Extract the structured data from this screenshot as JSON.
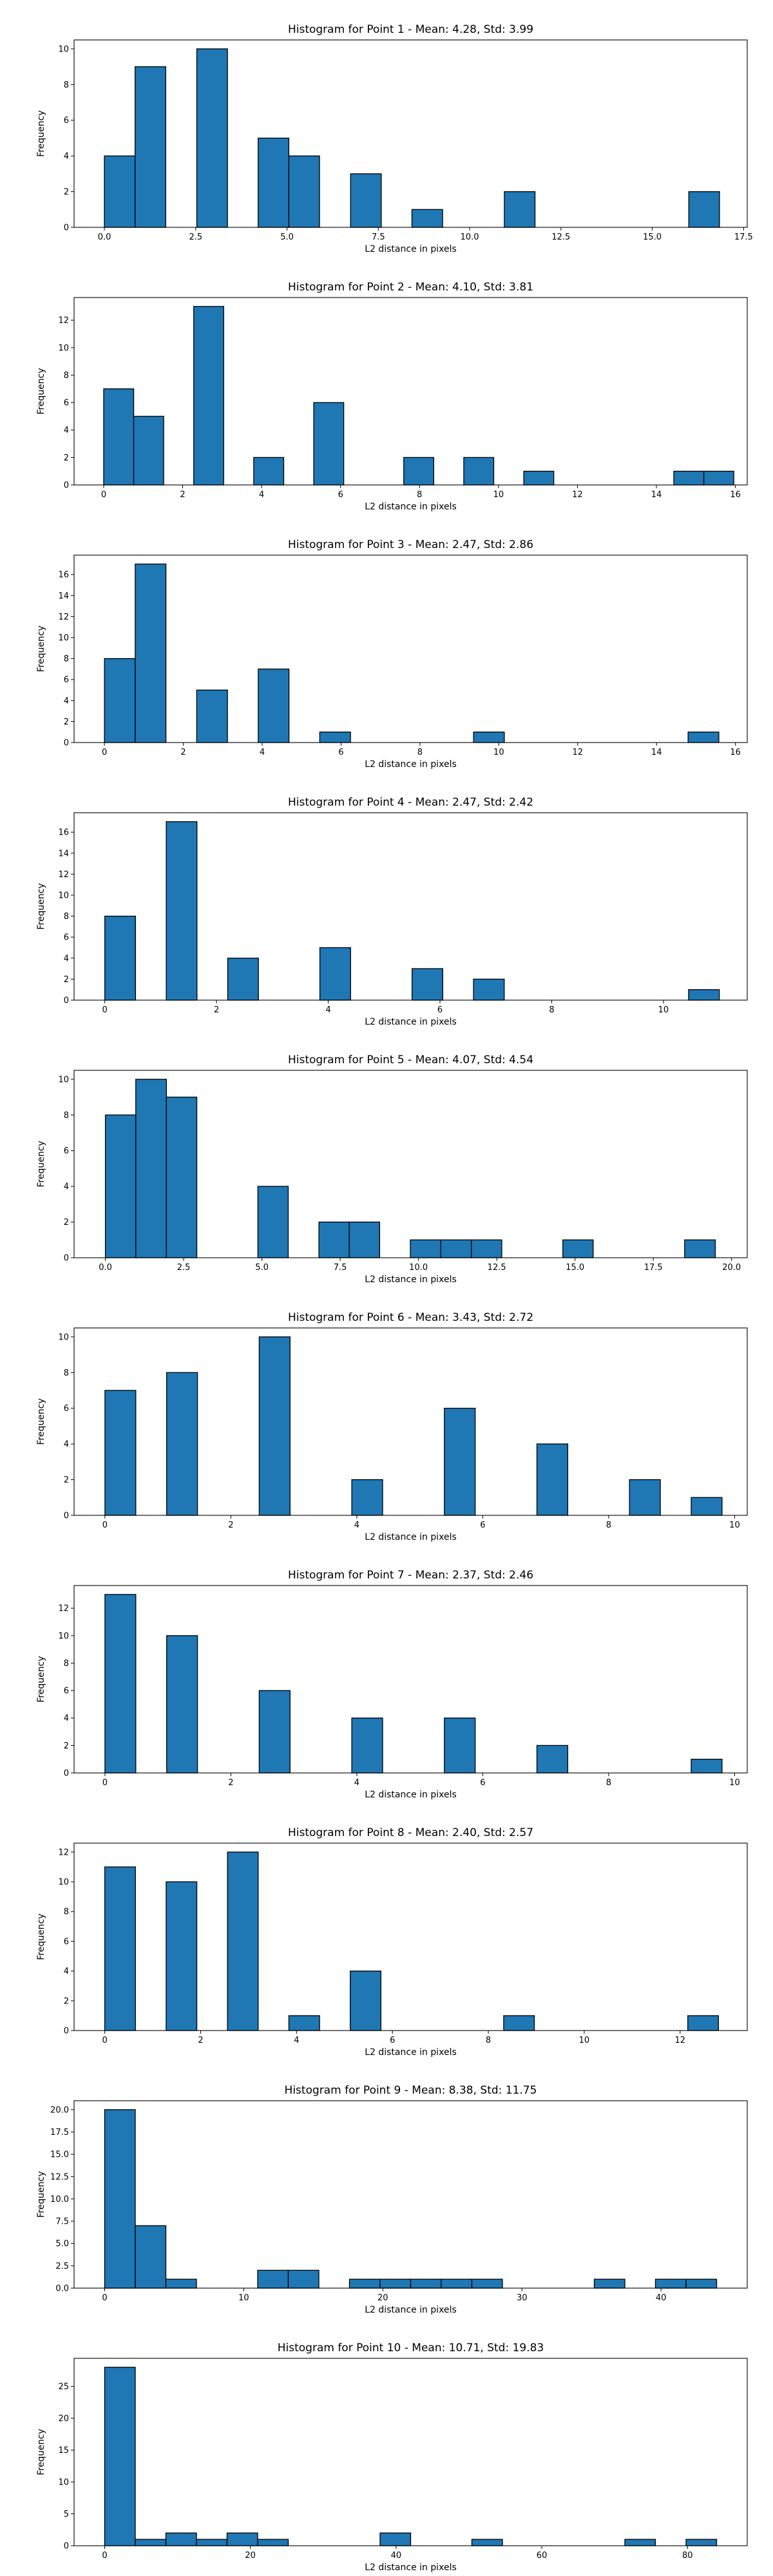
{
  "chart_data": [
    {
      "type": "bar",
      "title": "Histogram for Point 1 - Mean: 4.28, Std: 3.99",
      "xlabel": "L2 distance in pixels",
      "ylabel": "Frequency",
      "xlim": [
        -0.83,
        17.6
      ],
      "ylim": [
        0,
        10.5
      ],
      "xticks": [
        0.0,
        2.5,
        5.0,
        7.5,
        10.0,
        12.5,
        15.0,
        17.5
      ],
      "xtick_labels": [
        "0.0",
        "2.5",
        "5.0",
        "7.5",
        "10.0",
        "12.5",
        "15.0",
        "17.5"
      ],
      "yticks": [
        0,
        2,
        4,
        6,
        8,
        10
      ],
      "bins": [
        {
          "x0": 0.0,
          "x1": 0.84,
          "count": 4
        },
        {
          "x0": 0.84,
          "x1": 1.68,
          "count": 9
        },
        {
          "x0": 2.53,
          "x1": 3.37,
          "count": 10
        },
        {
          "x0": 4.21,
          "x1": 5.05,
          "count": 5
        },
        {
          "x0": 5.05,
          "x1": 5.89,
          "count": 4
        },
        {
          "x0": 6.74,
          "x1": 7.58,
          "count": 3
        },
        {
          "x0": 8.42,
          "x1": 9.26,
          "count": 1
        },
        {
          "x0": 10.95,
          "x1": 11.79,
          "count": 2
        },
        {
          "x0": 16.0,
          "x1": 16.84,
          "count": 2
        }
      ],
      "bar_color": "#1f77b4",
      "edge_color": "#000000"
    },
    {
      "type": "bar",
      "title": "Histogram for Point 2 - Mean: 4.10, Std: 3.81",
      "xlabel": "L2 distance in pixels",
      "ylabel": "Frequency",
      "xlim": [
        -0.75,
        16.3
      ],
      "ylim": [
        0,
        13.65
      ],
      "xticks": [
        0,
        2,
        4,
        6,
        8,
        10,
        12,
        14,
        16
      ],
      "xtick_labels": [
        "0",
        "2",
        "4",
        "6",
        "8",
        "10",
        "12",
        "14",
        "16"
      ],
      "yticks": [
        0,
        2,
        4,
        6,
        8,
        10,
        12
      ],
      "bins": [
        {
          "x0": 0.0,
          "x1": 0.76,
          "count": 7
        },
        {
          "x0": 0.76,
          "x1": 1.52,
          "count": 5
        },
        {
          "x0": 2.28,
          "x1": 3.04,
          "count": 13
        },
        {
          "x0": 3.8,
          "x1": 4.56,
          "count": 2
        },
        {
          "x0": 5.32,
          "x1": 6.08,
          "count": 6
        },
        {
          "x0": 7.6,
          "x1": 8.36,
          "count": 2
        },
        {
          "x0": 9.12,
          "x1": 9.88,
          "count": 2
        },
        {
          "x0": 10.64,
          "x1": 11.4,
          "count": 1
        },
        {
          "x0": 14.44,
          "x1": 15.2,
          "count": 1
        },
        {
          "x0": 15.2,
          "x1": 15.96,
          "count": 1
        }
      ],
      "bar_color": "#1f77b4",
      "edge_color": "#000000"
    },
    {
      "type": "bar",
      "title": "Histogram for Point 3 - Mean: 2.47, Std: 2.86",
      "xlabel": "L2 distance in pixels",
      "ylabel": "Frequency",
      "xlim": [
        -0.77,
        16.3
      ],
      "ylim": [
        0,
        17.85
      ],
      "xticks": [
        0,
        2,
        4,
        6,
        8,
        10,
        12,
        14,
        16
      ],
      "xtick_labels": [
        "0",
        "2",
        "4",
        "6",
        "8",
        "10",
        "12",
        "14",
        "16"
      ],
      "yticks": [
        0,
        2,
        4,
        6,
        8,
        10,
        12,
        14,
        16
      ],
      "bins": [
        {
          "x0": 0.0,
          "x1": 0.78,
          "count": 8
        },
        {
          "x0": 0.78,
          "x1": 1.56,
          "count": 17
        },
        {
          "x0": 2.34,
          "x1": 3.12,
          "count": 5
        },
        {
          "x0": 3.9,
          "x1": 4.68,
          "count": 7
        },
        {
          "x0": 5.46,
          "x1": 6.24,
          "count": 1
        },
        {
          "x0": 9.36,
          "x1": 10.14,
          "count": 1
        },
        {
          "x0": 14.8,
          "x1": 15.58,
          "count": 1
        }
      ],
      "bar_color": "#1f77b4",
      "edge_color": "#000000"
    },
    {
      "type": "bar",
      "title": "Histogram for Point 4 - Mean: 2.47, Std: 2.42",
      "xlabel": "L2 distance in pixels",
      "ylabel": "Frequency",
      "xlim": [
        -0.55,
        11.5
      ],
      "ylim": [
        0,
        17.85
      ],
      "xticks": [
        0,
        2,
        4,
        6,
        8,
        10
      ],
      "xtick_labels": [
        "0",
        "2",
        "4",
        "6",
        "8",
        "10"
      ],
      "yticks": [
        0,
        2,
        4,
        6,
        8,
        10,
        12,
        14,
        16
      ],
      "bins": [
        {
          "x0": 0.0,
          "x1": 0.55,
          "count": 8
        },
        {
          "x0": 1.1,
          "x1": 1.65,
          "count": 17
        },
        {
          "x0": 2.2,
          "x1": 2.75,
          "count": 4
        },
        {
          "x0": 3.85,
          "x1": 4.4,
          "count": 5
        },
        {
          "x0": 5.5,
          "x1": 6.05,
          "count": 3
        },
        {
          "x0": 6.6,
          "x1": 7.15,
          "count": 2
        },
        {
          "x0": 10.45,
          "x1": 11.0,
          "count": 1
        }
      ],
      "bar_color": "#1f77b4",
      "edge_color": "#000000"
    },
    {
      "type": "bar",
      "title": "Histogram for Point 5 - Mean: 4.07, Std: 4.54",
      "xlabel": "L2 distance in pixels",
      "ylabel": "Frequency",
      "xlim": [
        -1.0,
        20.5
      ],
      "ylim": [
        0,
        10.5
      ],
      "xticks": [
        0.0,
        2.5,
        5.0,
        7.5,
        10.0,
        12.5,
        15.0,
        17.5,
        20.0
      ],
      "xtick_labels": [
        "0.0",
        "2.5",
        "5.0",
        "7.5",
        "10.0",
        "12.5",
        "15.0",
        "17.5",
        "20.0"
      ],
      "yticks": [
        0,
        2,
        4,
        6,
        8,
        10
      ],
      "bins": [
        {
          "x0": 0.0,
          "x1": 0.97,
          "count": 8
        },
        {
          "x0": 0.97,
          "x1": 1.95,
          "count": 10
        },
        {
          "x0": 1.95,
          "x1": 2.92,
          "count": 9
        },
        {
          "x0": 4.87,
          "x1": 5.84,
          "count": 4
        },
        {
          "x0": 6.82,
          "x1": 7.79,
          "count": 2
        },
        {
          "x0": 7.79,
          "x1": 8.76,
          "count": 2
        },
        {
          "x0": 9.74,
          "x1": 10.71,
          "count": 1
        },
        {
          "x0": 10.71,
          "x1": 11.69,
          "count": 1
        },
        {
          "x0": 11.69,
          "x1": 12.66,
          "count": 1
        },
        {
          "x0": 14.61,
          "x1": 15.58,
          "count": 1
        },
        {
          "x0": 18.5,
          "x1": 19.48,
          "count": 1
        }
      ],
      "bar_color": "#1f77b4",
      "edge_color": "#000000"
    },
    {
      "type": "bar",
      "title": "Histogram for Point 6 - Mean: 3.43, Std: 2.72",
      "xlabel": "L2 distance in pixels",
      "ylabel": "Frequency",
      "xlim": [
        -0.49,
        10.2
      ],
      "ylim": [
        0,
        10.5
      ],
      "xticks": [
        0,
        2,
        4,
        6,
        8,
        10
      ],
      "xtick_labels": [
        "0",
        "2",
        "4",
        "6",
        "8",
        "10"
      ],
      "yticks": [
        0,
        2,
        4,
        6,
        8,
        10
      ],
      "bins": [
        {
          "x0": 0.0,
          "x1": 0.49,
          "count": 7
        },
        {
          "x0": 0.98,
          "x1": 1.47,
          "count": 8
        },
        {
          "x0": 2.45,
          "x1": 2.94,
          "count": 10
        },
        {
          "x0": 3.92,
          "x1": 4.41,
          "count": 2
        },
        {
          "x0": 5.39,
          "x1": 5.88,
          "count": 6
        },
        {
          "x0": 6.86,
          "x1": 7.35,
          "count": 4
        },
        {
          "x0": 8.33,
          "x1": 8.82,
          "count": 2
        },
        {
          "x0": 9.31,
          "x1": 9.8,
          "count": 1
        }
      ],
      "bar_color": "#1f77b4",
      "edge_color": "#000000"
    },
    {
      "type": "bar",
      "title": "Histogram for Point 7 - Mean: 2.37, Std: 2.46",
      "xlabel": "L2 distance in pixels",
      "ylabel": "Frequency",
      "xlim": [
        -0.49,
        10.2
      ],
      "ylim": [
        0,
        13.65
      ],
      "xticks": [
        0,
        2,
        4,
        6,
        8,
        10
      ],
      "xtick_labels": [
        "0",
        "2",
        "4",
        "6",
        "8",
        "10"
      ],
      "yticks": [
        0,
        2,
        4,
        6,
        8,
        10,
        12
      ],
      "bins": [
        {
          "x0": 0.0,
          "x1": 0.49,
          "count": 13
        },
        {
          "x0": 0.98,
          "x1": 1.47,
          "count": 10
        },
        {
          "x0": 2.45,
          "x1": 2.94,
          "count": 6
        },
        {
          "x0": 3.92,
          "x1": 4.41,
          "count": 4
        },
        {
          "x0": 5.39,
          "x1": 5.88,
          "count": 4
        },
        {
          "x0": 6.86,
          "x1": 7.35,
          "count": 2
        },
        {
          "x0": 9.31,
          "x1": 9.8,
          "count": 1
        }
      ],
      "bar_color": "#1f77b4",
      "edge_color": "#000000"
    },
    {
      "type": "bar",
      "title": "Histogram for Point 8 - Mean: 2.40, Std: 2.57",
      "xlabel": "L2 distance in pixels",
      "ylabel": "Frequency",
      "xlim": [
        -0.64,
        13.4
      ],
      "ylim": [
        0,
        12.6
      ],
      "xticks": [
        0,
        2,
        4,
        6,
        8,
        10,
        12
      ],
      "xtick_labels": [
        "0",
        "2",
        "4",
        "6",
        "8",
        "10",
        "12"
      ],
      "yticks": [
        0,
        2,
        4,
        6,
        8,
        10,
        12
      ],
      "bins": [
        {
          "x0": 0.0,
          "x1": 0.64,
          "count": 11
        },
        {
          "x0": 1.28,
          "x1": 1.92,
          "count": 10
        },
        {
          "x0": 2.56,
          "x1": 3.2,
          "count": 12
        },
        {
          "x0": 3.84,
          "x1": 4.48,
          "count": 1
        },
        {
          "x0": 5.12,
          "x1": 5.76,
          "count": 4
        },
        {
          "x0": 8.32,
          "x1": 8.96,
          "count": 1
        },
        {
          "x0": 12.16,
          "x1": 12.8,
          "count": 1
        }
      ],
      "bar_color": "#1f77b4",
      "edge_color": "#000000"
    },
    {
      "type": "bar",
      "title": "Histogram for Point 9 - Mean: 8.38, Std: 11.75",
      "xlabel": "L2 distance in pixels",
      "ylabel": "Frequency",
      "xlim": [
        -2.2,
        46.2
      ],
      "ylim": [
        0,
        21.0
      ],
      "xticks": [
        0,
        10,
        20,
        30,
        40
      ],
      "xtick_labels": [
        "0",
        "10",
        "20",
        "30",
        "40"
      ],
      "yticks": [
        0.0,
        2.5,
        5.0,
        7.5,
        10.0,
        12.5,
        15.0,
        17.5,
        20.0
      ],
      "ytick_labels": [
        "0.0",
        "2.5",
        "5.0",
        "7.5",
        "10.0",
        "12.5",
        "15.0",
        "17.5",
        "20.0"
      ],
      "bins": [
        {
          "x0": 0.0,
          "x1": 2.2,
          "count": 20
        },
        {
          "x0": 2.2,
          "x1": 4.4,
          "count": 7
        },
        {
          "x0": 4.4,
          "x1": 6.6,
          "count": 1
        },
        {
          "x0": 11.0,
          "x1": 13.2,
          "count": 2
        },
        {
          "x0": 13.2,
          "x1": 15.4,
          "count": 2
        },
        {
          "x0": 17.6,
          "x1": 19.8,
          "count": 1
        },
        {
          "x0": 19.8,
          "x1": 22.0,
          "count": 1
        },
        {
          "x0": 22.0,
          "x1": 24.2,
          "count": 1
        },
        {
          "x0": 24.2,
          "x1": 26.4,
          "count": 1
        },
        {
          "x0": 26.4,
          "x1": 28.6,
          "count": 1
        },
        {
          "x0": 35.2,
          "x1": 37.4,
          "count": 1
        },
        {
          "x0": 39.6,
          "x1": 41.8,
          "count": 1
        },
        {
          "x0": 41.8,
          "x1": 44.0,
          "count": 1
        }
      ],
      "bar_color": "#1f77b4",
      "edge_color": "#000000"
    },
    {
      "type": "bar",
      "title": "Histogram for Point 10 - Mean: 10.71, Std: 19.83",
      "xlabel": "L2 distance in pixels",
      "ylabel": "Frequency",
      "xlim": [
        -4.2,
        88.2
      ],
      "ylim": [
        0,
        29.4
      ],
      "xticks": [
        0,
        20,
        40,
        60,
        80
      ],
      "xtick_labels": [
        "0",
        "20",
        "40",
        "60",
        "80"
      ],
      "yticks": [
        0,
        5,
        10,
        15,
        20,
        25
      ],
      "bins": [
        {
          "x0": 0.0,
          "x1": 4.2,
          "count": 28
        },
        {
          "x0": 4.2,
          "x1": 8.4,
          "count": 1
        },
        {
          "x0": 8.4,
          "x1": 12.6,
          "count": 2
        },
        {
          "x0": 12.6,
          "x1": 16.8,
          "count": 1
        },
        {
          "x0": 16.8,
          "x1": 21.0,
          "count": 2
        },
        {
          "x0": 21.0,
          "x1": 25.2,
          "count": 1
        },
        {
          "x0": 37.8,
          "x1": 42.0,
          "count": 2
        },
        {
          "x0": 50.4,
          "x1": 54.6,
          "count": 1
        },
        {
          "x0": 71.4,
          "x1": 75.6,
          "count": 1
        },
        {
          "x0": 79.8,
          "x1": 84.0,
          "count": 1
        }
      ],
      "bar_color": "#1f77b4",
      "edge_color": "#000000"
    }
  ]
}
